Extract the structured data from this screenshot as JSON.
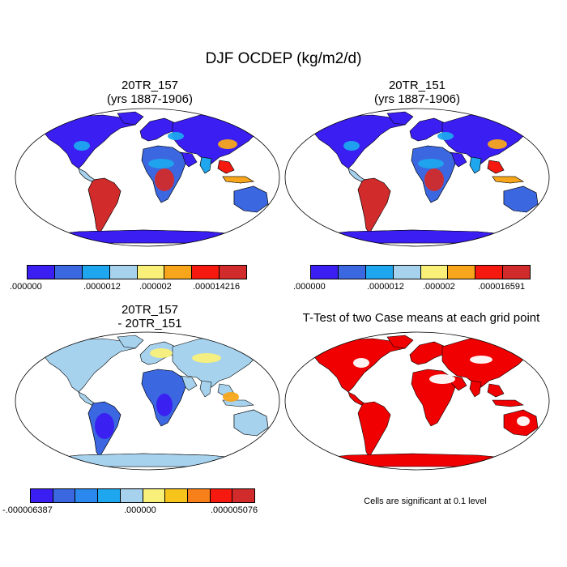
{
  "title": "DJF OCDEP (kg/m2/d)",
  "panels": [
    {
      "title_line1": "20TR_157",
      "title_line2": "(yrs 1887-1906)",
      "type": "field",
      "ocean_fill": "#ffffff"
    },
    {
      "title_line1": "20TR_151",
      "title_line2": "(yrs 1887-1906)",
      "type": "field",
      "ocean_fill": "#ffffff"
    },
    {
      "title_line1": "20TR_157",
      "title_line2": "- 20TR_151",
      "type": "difference",
      "ocean_fill": "#ffffff"
    },
    {
      "title_line1": "T-Test of two Case means at each grid point",
      "title_line2": "",
      "type": "ttest",
      "ocean_fill": "#ffffff"
    }
  ],
  "colorbars": {
    "top_left": {
      "colors": [
        "#3a1ef2",
        "#3b67e0",
        "#1ea6ee",
        "#a6d2ee",
        "#f9f07a",
        "#f7a61b",
        "#f5190f",
        "#d22b2b"
      ],
      "ticks": [
        ".000000",
        ".0000012",
        ".000002",
        ".000014216"
      ]
    },
    "top_right": {
      "colors": [
        "#3a1ef2",
        "#3b67e0",
        "#1ea6ee",
        "#a6d2ee",
        "#f9f07a",
        "#f7a61b",
        "#f5190f",
        "#d22b2b"
      ],
      "ticks": [
        ".000000",
        ".0000012",
        ".000002",
        ".000016591"
      ]
    },
    "bottom_left": {
      "colors": [
        "#3a1ef2",
        "#3b67e0",
        "#2a88ee",
        "#1ea6ee",
        "#a6d2ee",
        "#f9f07a",
        "#f7c41b",
        "#f7801b",
        "#f5190f",
        "#d22b2b"
      ],
      "ticks": [
        "-.000006387",
        ".000000",
        ".000005076"
      ]
    }
  },
  "ttest_note": "Cells are significant at 0.1 level",
  "colors": {
    "significant": "#f00000",
    "outline": "#000000"
  }
}
